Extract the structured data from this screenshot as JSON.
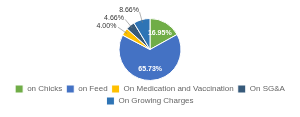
{
  "chart_data": {
    "type": "pie",
    "categories": [
      "on Chicks",
      "on Feed",
      "On Medication and Vaccination",
      "On SG&A",
      "On Growing Charges"
    ],
    "values": [
      16.95,
      65.73,
      4.0,
      4.66,
      8.66
    ],
    "value_labels": [
      "16.95%",
      "65.73%",
      "4.00%",
      "4.66%",
      "8.66%"
    ],
    "colors": [
      "#70ad47",
      "#4472c4",
      "#ffc000",
      "#375a7a",
      "#2e74b5"
    ],
    "data_labels": true,
    "legend": "bottom"
  }
}
